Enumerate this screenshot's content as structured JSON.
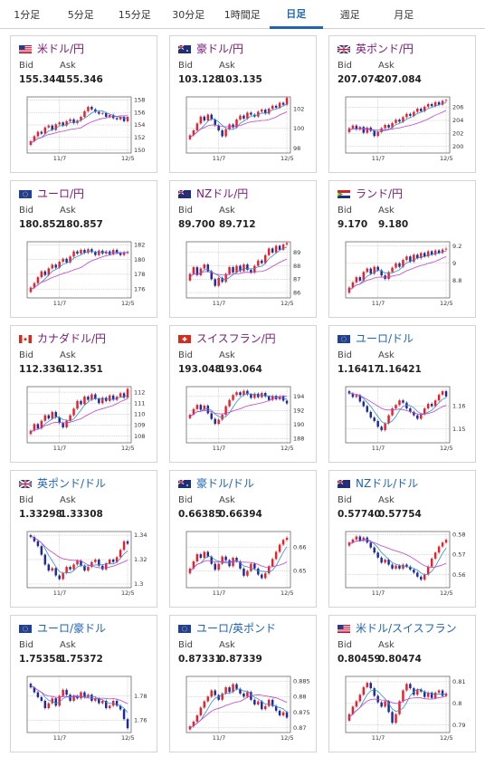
{
  "tabs": [
    {
      "label": "1分足",
      "active": false
    },
    {
      "label": "5分足",
      "active": false
    },
    {
      "label": "15分足",
      "active": false
    },
    {
      "label": "30分足",
      "active": false
    },
    {
      "label": "1時間足",
      "active": false
    },
    {
      "label": "日足",
      "active": true
    },
    {
      "label": "週足",
      "active": false
    },
    {
      "label": "月足",
      "active": false
    }
  ],
  "labels": {
    "bid": "Bid",
    "ask": "Ask"
  },
  "colors": {
    "up": "#e8202a",
    "down": "#1c2a9c",
    "ma_short": "#2b8fd6",
    "ma_long": "#c43fd0",
    "grid": "#9a9a9a"
  },
  "pairs": [
    {
      "name": "米ドル/円",
      "flag": "us-jp-flag-icon",
      "bid": "155.344",
      "ask": "155.346",
      "chart_data": {
        "type": "candlestick",
        "x_ticks": [
          "11/7",
          "12/5"
        ],
        "y_ticks": [
          "158",
          "156",
          "154",
          "152",
          "150"
        ],
        "ylim": [
          149.5,
          158.5
        ],
        "close": [
          151.4,
          152.2,
          152.9,
          152.6,
          153.6,
          153.9,
          153.2,
          154.1,
          154.4,
          153.9,
          154.6,
          154.9,
          154.3,
          154.7,
          155.3,
          156.2,
          156.9,
          156.5,
          156.1,
          155.8,
          155.9,
          155.3,
          155.6,
          155.1,
          154.9,
          155.3,
          154.6,
          155.3
        ],
        "open_first": 150.8
      }
    },
    {
      "name": "豪ドル/円",
      "flag": "au-jp-flag-icon",
      "bid": "103.128",
      "ask": "103.135",
      "chart_data": {
        "type": "candlestick",
        "x_ticks": [
          "11/7",
          "12/5"
        ],
        "y_ticks": [
          "102",
          "100",
          "98"
        ],
        "ylim": [
          97.5,
          103.2
        ],
        "close": [
          99.3,
          99.8,
          100.5,
          101.2,
          100.8,
          101.4,
          100.9,
          100.3,
          99.8,
          99.2,
          99.9,
          100.4,
          100.1,
          100.9,
          101.3,
          101.0,
          101.6,
          101.4,
          101.2,
          101.7,
          101.9,
          101.5,
          102.0,
          102.3,
          102.1,
          102.6,
          102.4,
          103.1
        ],
        "open_first": 98.9
      }
    },
    {
      "name": "英ポンド/円",
      "flag": "gb-jp-flag-icon",
      "bid": "207.074",
      "ask": "207.084",
      "chart_data": {
        "type": "candlestick",
        "x_ticks": [
          "11/7",
          "12/5"
        ],
        "y_ticks": [
          "206",
          "204",
          "202",
          "200"
        ],
        "ylim": [
          199,
          207.6
        ],
        "close": [
          202.8,
          203.2,
          202.6,
          203.0,
          202.1,
          202.9,
          202.4,
          201.6,
          202.2,
          202.8,
          203.3,
          202.9,
          203.6,
          204.1,
          203.8,
          204.5,
          205.0,
          204.7,
          205.3,
          205.8,
          205.4,
          206.1,
          206.5,
          206.2,
          206.8,
          206.4,
          207.0,
          207.1
        ],
        "open_first": 202.2
      }
    },
    {
      "name": "ユーロ/円",
      "flag": "eu-jp-flag-icon",
      "bid": "180.852",
      "ask": "180.857",
      "chart_data": {
        "type": "candlestick",
        "x_ticks": [
          "11/7",
          "12/5"
        ],
        "y_ticks": [
          "182",
          "180",
          "178",
          "176"
        ],
        "ylim": [
          174.8,
          182.4
        ],
        "close": [
          176.2,
          176.8,
          177.6,
          178.4,
          177.9,
          178.8,
          179.3,
          178.9,
          179.7,
          180.1,
          179.6,
          180.4,
          181.1,
          180.8,
          181.3,
          180.9,
          181.4,
          181.0,
          180.6,
          181.2,
          180.8,
          181.1,
          180.7,
          181.3,
          180.9,
          180.6,
          181.0,
          180.9
        ],
        "open_first": 175.6
      }
    },
    {
      "name": "NZドル/円",
      "flag": "nz-jp-flag-icon",
      "bid": "89.700",
      "ask": "89.712",
      "chart_data": {
        "type": "candlestick",
        "x_ticks": [
          "11/7",
          "12/5"
        ],
        "y_ticks": [
          "89",
          "88",
          "87",
          "86"
        ],
        "ylim": [
          85.6,
          89.8
        ],
        "close": [
          87.4,
          87.9,
          87.3,
          87.8,
          88.1,
          87.6,
          87.0,
          86.5,
          87.1,
          86.8,
          87.4,
          87.9,
          87.5,
          88.0,
          87.6,
          88.1,
          87.7,
          87.5,
          88.0,
          88.4,
          88.2,
          88.8,
          89.3,
          89.0,
          89.5,
          89.2,
          89.6,
          89.7
        ],
        "open_first": 86.9
      }
    },
    {
      "name": "ランド/円",
      "flag": "za-jp-flag-icon",
      "bid": "9.170",
      "ask": "9.180",
      "chart_data": {
        "type": "candlestick",
        "x_ticks": [
          "11/7",
          "12/5"
        ],
        "y_ticks": [
          "9.2",
          "9",
          "8.8"
        ],
        "ylim": [
          8.6,
          9.25
        ],
        "close": [
          8.72,
          8.78,
          8.84,
          8.8,
          8.9,
          8.94,
          8.88,
          8.96,
          8.92,
          8.86,
          8.82,
          8.9,
          8.95,
          9.0,
          8.96,
          9.04,
          9.08,
          9.02,
          9.1,
          9.06,
          9.12,
          9.08,
          9.14,
          9.1,
          9.15,
          9.12,
          9.16,
          9.17
        ],
        "open_first": 8.66
      }
    },
    {
      "name": "カナダドル/円",
      "flag": "ca-jp-flag-icon",
      "bid": "112.336",
      "ask": "112.351",
      "chart_data": {
        "type": "candlestick",
        "x_ticks": [
          "11/7",
          "12/5"
        ],
        "y_ticks": [
          "112",
          "111",
          "110",
          "109",
          "108"
        ],
        "ylim": [
          107.4,
          112.5
        ],
        "close": [
          108.5,
          109.1,
          108.7,
          109.4,
          109.9,
          109.6,
          110.2,
          109.7,
          109.2,
          108.8,
          109.4,
          109.9,
          110.5,
          111.2,
          110.9,
          111.6,
          111.3,
          111.8,
          111.4,
          111.0,
          111.5,
          111.2,
          111.7,
          111.3,
          111.6,
          111.9,
          111.5,
          112.3
        ],
        "open_first": 108.2
      }
    },
    {
      "name": "スイスフラン/円",
      "flag": "ch-jp-flag-icon",
      "bid": "193.048",
      "ask": "193.064",
      "chart_data": {
        "type": "candlestick",
        "x_ticks": [
          "11/7",
          "12/5"
        ],
        "y_ticks": [
          "194",
          "192",
          "190",
          "188"
        ],
        "ylim": [
          187.4,
          195.4
        ],
        "close": [
          191.4,
          192.2,
          192.8,
          192.1,
          192.7,
          191.6,
          190.8,
          190.1,
          190.7,
          191.4,
          192.6,
          193.5,
          194.2,
          194.6,
          194.2,
          194.8,
          194.3,
          193.8,
          194.4,
          193.9,
          194.5,
          194.0,
          193.5,
          194.1,
          193.6,
          194.0,
          193.4,
          193.0
        ],
        "open_first": 190.9
      }
    },
    {
      "name": "ユーロ/ドル",
      "flag": "eu-us-flag-icon",
      "bid": "1.16417",
      "ask": "1.16421",
      "chart_data": {
        "type": "candlestick",
        "x_ticks": [
          "11/7",
          "12/5"
        ],
        "y_ticks": [
          "1.16",
          "1.15"
        ],
        "ylim": [
          1.144,
          1.1685
        ],
        "close": [
          1.1655,
          1.164,
          1.1648,
          1.162,
          1.16,
          1.1575,
          1.155,
          1.1535,
          1.151,
          1.1495,
          1.1525,
          1.156,
          1.159,
          1.1605,
          1.1625,
          1.1615,
          1.159,
          1.1575,
          1.156,
          1.1545,
          1.1565,
          1.159,
          1.161,
          1.16,
          1.1625,
          1.165,
          1.1665,
          1.1642
        ],
        "open_first": 1.1665
      }
    },
    {
      "name": "英ポンド/ドル",
      "flag": "gb-us-flag-icon",
      "bid": "1.33298",
      "ask": "1.33308",
      "chart_data": {
        "type": "candlestick",
        "x_ticks": [
          "11/7",
          "12/5"
        ],
        "y_ticks": [
          "1.34",
          "1.32",
          "1.3"
        ],
        "ylim": [
          1.297,
          1.343
        ],
        "close": [
          1.3385,
          1.335,
          1.331,
          1.324,
          1.316,
          1.311,
          1.313,
          1.307,
          1.304,
          1.309,
          1.314,
          1.312,
          1.316,
          1.319,
          1.315,
          1.311,
          1.314,
          1.318,
          1.32,
          1.315,
          1.312,
          1.317,
          1.32,
          1.318,
          1.322,
          1.328,
          1.335,
          1.333
        ],
        "open_first": 1.34
      }
    },
    {
      "name": "豪ドル/ドル",
      "flag": "au-us-flag-icon",
      "bid": "0.66385",
      "ask": "0.66394",
      "chart_data": {
        "type": "candlestick",
        "x_ticks": [
          "11/7",
          "12/5"
        ],
        "y_ticks": [
          "0.66",
          "0.65"
        ],
        "ylim": [
          0.643,
          0.6665
        ],
        "close": [
          0.651,
          0.654,
          0.657,
          0.6555,
          0.658,
          0.656,
          0.653,
          0.6505,
          0.653,
          0.656,
          0.6545,
          0.652,
          0.6555,
          0.654,
          0.651,
          0.648,
          0.65,
          0.653,
          0.651,
          0.6485,
          0.647,
          0.649,
          0.652,
          0.655,
          0.658,
          0.661,
          0.663,
          0.6639
        ],
        "open_first": 0.649
      }
    },
    {
      "name": "NZドル/ドル",
      "flag": "nz-us-flag-icon",
      "bid": "0.57740",
      "ask": "0.57754",
      "chart_data": {
        "type": "candlestick",
        "x_ticks": [
          "11/7",
          "12/5"
        ],
        "y_ticks": [
          "0.58",
          "0.57",
          "0.56"
        ],
        "ylim": [
          0.5535,
          0.5815
        ],
        "close": [
          0.576,
          0.5775,
          0.579,
          0.577,
          0.5785,
          0.576,
          0.5735,
          0.571,
          0.5685,
          0.566,
          0.5675,
          0.565,
          0.563,
          0.5645,
          0.563,
          0.565,
          0.564,
          0.5625,
          0.561,
          0.559,
          0.5575,
          0.56,
          0.564,
          0.568,
          0.571,
          0.574,
          0.576,
          0.5774
        ],
        "open_first": 0.5745
      }
    },
    {
      "name": "ユーロ/豪ドル",
      "flag": "eu-au-flag-icon",
      "bid": "1.75358",
      "ask": "1.75372",
      "chart_data": {
        "type": "candlestick",
        "x_ticks": [
          "11/7",
          "12/5"
        ],
        "y_ticks": [
          "1.78",
          "1.76"
        ],
        "ylim": [
          1.75,
          1.796
        ],
        "close": [
          1.787,
          1.783,
          1.779,
          1.776,
          1.77,
          1.774,
          1.778,
          1.772,
          1.78,
          1.785,
          1.781,
          1.776,
          1.78,
          1.778,
          1.783,
          1.779,
          1.781,
          1.776,
          1.778,
          1.774,
          1.776,
          1.77,
          1.772,
          1.776,
          1.772,
          1.769,
          1.761,
          1.7536
        ],
        "open_first": 1.79
      }
    },
    {
      "name": "ユーロ/英ポンド",
      "flag": "eu-gb-flag-icon",
      "bid": "0.87331",
      "ask": "0.87339",
      "chart_data": {
        "type": "candlestick",
        "x_ticks": [
          "11/7",
          "12/5"
        ],
        "y_ticks": [
          "0.885",
          "0.88",
          "0.875",
          "0.87"
        ],
        "ylim": [
          0.8685,
          0.8865
        ],
        "close": [
          0.8705,
          0.872,
          0.874,
          0.8765,
          0.8785,
          0.88,
          0.882,
          0.8805,
          0.879,
          0.881,
          0.883,
          0.8815,
          0.884,
          0.8825,
          0.881,
          0.88,
          0.8815,
          0.879,
          0.8775,
          0.8785,
          0.876,
          0.877,
          0.879,
          0.877,
          0.8755,
          0.874,
          0.875,
          0.8733
        ],
        "open_first": 0.8695
      }
    },
    {
      "name": "米ドル/スイスフラン",
      "flag": "us-ch-flag-icon",
      "bid": "0.80459",
      "ask": "0.80474",
      "chart_data": {
        "type": "candlestick",
        "x_ticks": [
          "11/7",
          "12/5"
        ],
        "y_ticks": [
          "0.81",
          "0.8",
          "0.79"
        ],
        "ylim": [
          0.7865,
          0.8125
        ],
        "close": [
          0.795,
          0.7985,
          0.801,
          0.804,
          0.8075,
          0.8095,
          0.807,
          0.8035,
          0.8005,
          0.7985,
          0.801,
          0.796,
          0.791,
          0.795,
          0.801,
          0.806,
          0.809,
          0.807,
          0.804,
          0.8065,
          0.8055,
          0.803,
          0.805,
          0.8025,
          0.805,
          0.806,
          0.8035,
          0.8046
        ],
        "open_first": 0.792
      }
    }
  ]
}
